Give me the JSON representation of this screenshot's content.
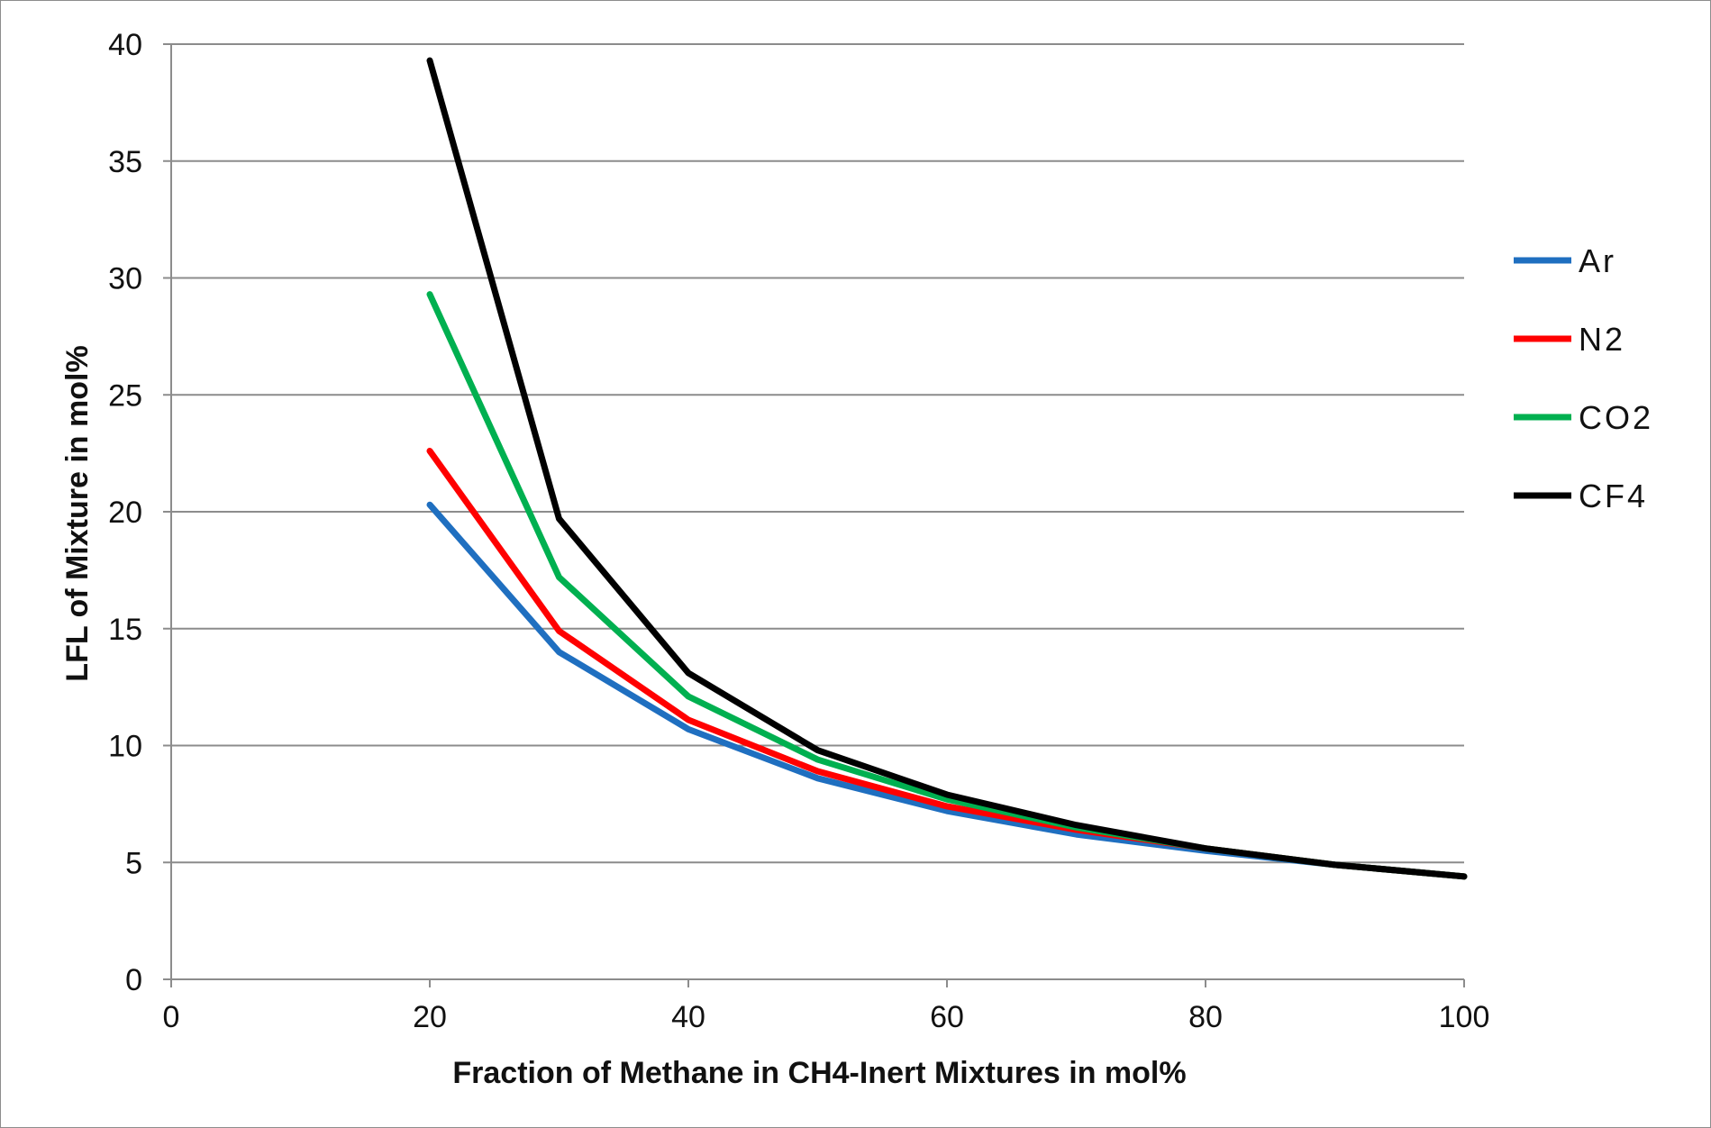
{
  "chart_data": {
    "type": "line",
    "title": "",
    "xlabel": "Fraction of Methane  in CH4-Inert Mixtures in mol%",
    "ylabel": "LFL  of  Mixture in mol%",
    "xlim": [
      0,
      100
    ],
    "ylim": [
      0,
      40
    ],
    "xticks": [
      "0",
      "20",
      "40",
      "60",
      "80",
      "100"
    ],
    "yticks": [
      "0",
      "5",
      "10",
      "15",
      "20",
      "25",
      "30",
      "35",
      "40"
    ],
    "grid": "horizontal",
    "legend_position": "right",
    "x": [
      20,
      30,
      40,
      50,
      60,
      70,
      80,
      90,
      100
    ],
    "series": [
      {
        "name": "Ar",
        "color": "#1f6fc0",
        "values": [
          20.3,
          14.0,
          10.7,
          8.6,
          7.2,
          6.2,
          5.5,
          4.9,
          4.4
        ]
      },
      {
        "name": "N2",
        "color": "#ff0000",
        "values": [
          22.6,
          14.9,
          11.1,
          8.9,
          7.4,
          6.4,
          5.6,
          4.9,
          4.4
        ]
      },
      {
        "name": "CO2",
        "color": "#00b050",
        "values": [
          29.3,
          17.2,
          12.1,
          9.4,
          7.7,
          6.5,
          5.6,
          4.9,
          4.4
        ]
      },
      {
        "name": "CF4",
        "color": "#000000",
        "values": [
          39.3,
          19.7,
          13.1,
          9.8,
          7.9,
          6.6,
          5.6,
          4.9,
          4.4
        ]
      }
    ]
  }
}
